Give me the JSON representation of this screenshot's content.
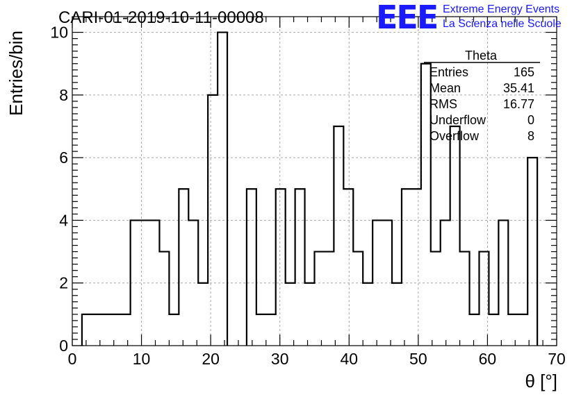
{
  "chart_data": {
    "type": "histogram",
    "title": "CARI-01-2019-10-11-00008",
    "xlabel": "θ [°]",
    "ylabel": "Entries/bin",
    "xlim": [
      0,
      70
    ],
    "ylim": [
      0,
      10.5
    ],
    "grid": true,
    "x_ticks": [
      0,
      10,
      20,
      30,
      40,
      50,
      60,
      70
    ],
    "y_ticks": [
      0,
      2,
      4,
      6,
      8,
      10
    ],
    "bin_width": 1.4,
    "bin_edges": [
      0,
      1.4,
      2.8,
      4.2,
      5.6,
      7.0,
      8.4,
      9.8,
      11.2,
      12.6,
      14.0,
      15.4,
      16.8,
      18.2,
      19.6,
      21.0,
      22.4,
      23.8,
      25.2,
      26.6,
      28.0,
      29.4,
      30.8,
      32.2,
      33.6,
      35.0,
      36.4,
      37.8,
      39.2,
      40.6,
      42.0,
      43.4,
      44.8,
      46.2,
      47.6,
      49.0,
      50.4,
      51.8,
      53.2,
      54.6,
      56.0,
      57.4,
      58.8,
      60.2,
      61.6,
      63.0,
      64.4,
      65.8,
      67.2,
      68.6,
      70.0
    ],
    "values": [
      0,
      1,
      1,
      1,
      1,
      1,
      4,
      4,
      4,
      3,
      1,
      5,
      4,
      2,
      8,
      10,
      0,
      0,
      5,
      1,
      1,
      5,
      2,
      5,
      2,
      3,
      3,
      7,
      5,
      3,
      2,
      4,
      4,
      2,
      5,
      5,
      9,
      3,
      4,
      7,
      3,
      1,
      3,
      1,
      4,
      1,
      1,
      6,
      0,
      0
    ],
    "stats": {
      "name": "Theta",
      "rows": [
        {
          "label": "Entries",
          "value": "165"
        },
        {
          "label": "Mean",
          "value": "35.41"
        },
        {
          "label": "RMS",
          "value": "16.77"
        },
        {
          "label": "Underflow",
          "value": "0"
        },
        {
          "label": "Overflow",
          "value": "8"
        }
      ]
    }
  },
  "logo": {
    "letters": "EEE",
    "line1": "Extreme Energy Events",
    "line2": "La Scienza nelle Scuole"
  },
  "colors": {
    "logo": "#1a1aff",
    "grid": "#a8a8a8",
    "line": "#000000"
  }
}
